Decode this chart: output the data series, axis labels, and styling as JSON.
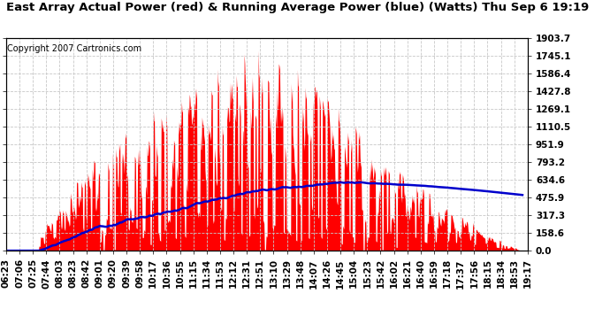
{
  "title": "East Array Actual Power (red) & Running Average Power (blue) (Watts) Thu Sep 6 19:19",
  "copyright": "Copyright 2007 Cartronics.com",
  "ylabel_right_values": [
    1903.7,
    1745.1,
    1586.4,
    1427.8,
    1269.1,
    1110.5,
    951.9,
    793.2,
    634.6,
    475.9,
    317.3,
    158.6,
    0.0
  ],
  "ymax": 1903.7,
  "ymin": 0.0,
  "background_color": "#ffffff",
  "plot_bg_color": "#ffffff",
  "grid_color": "#c8c8c8",
  "actual_color": "#ff0000",
  "average_color": "#0000cc",
  "title_fontsize": 9.5,
  "copyright_fontsize": 7,
  "tick_fontsize": 7.5,
  "x_tick_labels": [
    "06:23",
    "07:06",
    "07:25",
    "07:44",
    "08:03",
    "08:23",
    "08:42",
    "09:01",
    "09:20",
    "09:39",
    "09:58",
    "10:17",
    "10:36",
    "10:55",
    "11:15",
    "11:34",
    "11:53",
    "12:12",
    "12:31",
    "12:51",
    "13:10",
    "13:29",
    "13:48",
    "14:07",
    "14:26",
    "14:45",
    "15:04",
    "15:23",
    "15:42",
    "16:02",
    "16:21",
    "16:40",
    "16:59",
    "17:18",
    "17:37",
    "17:56",
    "18:15",
    "18:34",
    "18:53",
    "19:17"
  ]
}
